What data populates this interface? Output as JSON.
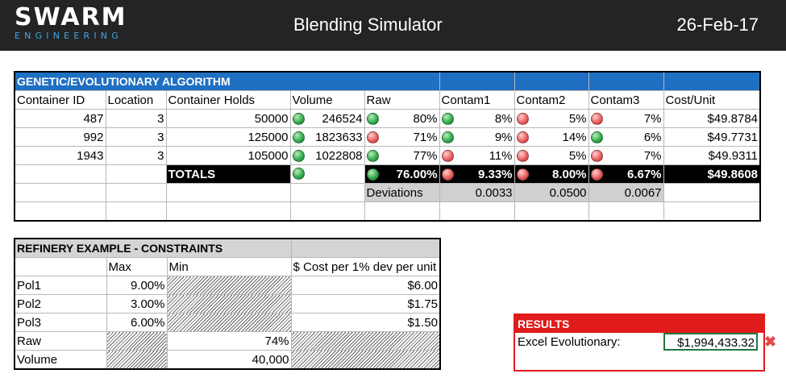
{
  "header": {
    "logo_main": "SWARM",
    "logo_sub": "ENGINEERING",
    "title": "Blending Simulator",
    "date": "26-Feb-17"
  },
  "ga": {
    "title": "GENETIC/EVOLUTIONARY ALGORITHM",
    "columns": [
      "Container ID",
      "Location",
      "Container Holds",
      "Volume",
      "Raw",
      "Contam1",
      "Contam2",
      "Contam3",
      "Cost/Unit"
    ],
    "rows": [
      {
        "id": "487",
        "location": "3",
        "holds": "50000",
        "volume": "246524",
        "raw": "80%",
        "c1": "8%",
        "c2": "5%",
        "c3": "7%",
        "cost": "$49.8784",
        "vol_status": "green",
        "raw_status": "green",
        "c1_status": "green",
        "c2_status": "red",
        "c3_status": "red"
      },
      {
        "id": "992",
        "location": "3",
        "holds": "125000",
        "volume": "1823633",
        "raw": "71%",
        "c1": "9%",
        "c2": "14%",
        "c3": "6%",
        "cost": "$49.7731",
        "vol_status": "green",
        "raw_status": "red",
        "c1_status": "green",
        "c2_status": "red",
        "c3_status": "green"
      },
      {
        "id": "1943",
        "location": "3",
        "holds": "105000",
        "volume": "1022808",
        "raw": "77%",
        "c1": "11%",
        "c2": "5%",
        "c3": "7%",
        "cost": "$49.9311",
        "vol_status": "green",
        "raw_status": "green",
        "c1_status": "red",
        "c2_status": "red",
        "c3_status": "red"
      }
    ],
    "totals": {
      "label": "TOTALS",
      "raw": "76.00%",
      "c1": "9.33%",
      "c2": "8.00%",
      "c3": "6.67%",
      "cost": "$49.8608",
      "vol_status": "green",
      "raw_status": "green",
      "c1_status": "red",
      "c2_status": "red",
      "c3_status": "red"
    },
    "deviations": {
      "label": "Deviations",
      "c1": "0.0033",
      "c2": "0.0500",
      "c3": "0.0067"
    }
  },
  "constraints": {
    "title": "REFINERY EXAMPLE - CONSTRAINTS",
    "columns": [
      "",
      "Max",
      "Min",
      "$ Cost per 1% dev per unit"
    ],
    "rows": [
      {
        "name": "Pol1",
        "max": "9.00%",
        "min": "",
        "cost": "$6.00"
      },
      {
        "name": "Pol2",
        "max": "3.00%",
        "min": "",
        "cost": "$1.75"
      },
      {
        "name": "Pol3",
        "max": "6.00%",
        "min": "",
        "cost": "$1.50"
      },
      {
        "name": "Raw",
        "max": "",
        "min": "74%",
        "cost": ""
      },
      {
        "name": "Volume",
        "max": "",
        "min": "40,000",
        "cost": ""
      }
    ]
  },
  "results": {
    "title": "RESULTS",
    "label": "Excel Evolutionary:",
    "value": "$1,994,433.32"
  },
  "colors": {
    "header_bg": "#222426",
    "ga_header": "#1f6fc2",
    "results": "#e01b1b",
    "status_green": "#2ea84a",
    "status_red": "#e85a5a"
  }
}
